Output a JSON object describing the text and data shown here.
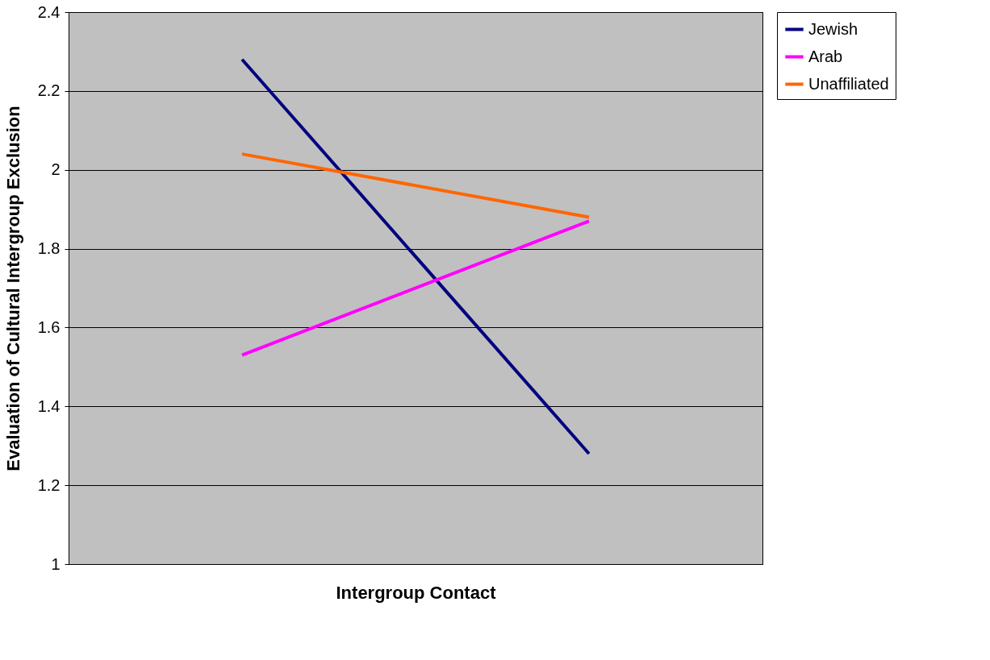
{
  "chart_data": {
    "type": "line",
    "xlabel": "Intergroup Contact",
    "ylabel": "Evaluation of Cultural Intergroup Exclusion",
    "categories": [
      null,
      null
    ],
    "series": [
      {
        "name": "Jewish",
        "color": "#000080",
        "values": [
          2.28,
          1.28
        ]
      },
      {
        "name": "Arab",
        "color": "#ff00ff",
        "values": [
          1.53,
          1.87
        ]
      },
      {
        "name": "Unaffiliated",
        "color": "#ff6600",
        "values": [
          2.04,
          1.88
        ]
      }
    ],
    "ylim": [
      1,
      2.4
    ],
    "yticks": [
      1,
      1.2,
      1.4,
      1.6,
      1.8,
      2,
      2.2,
      2.4
    ],
    "grid": "y",
    "legend": "right",
    "marker": "none",
    "line_style": "solid"
  }
}
